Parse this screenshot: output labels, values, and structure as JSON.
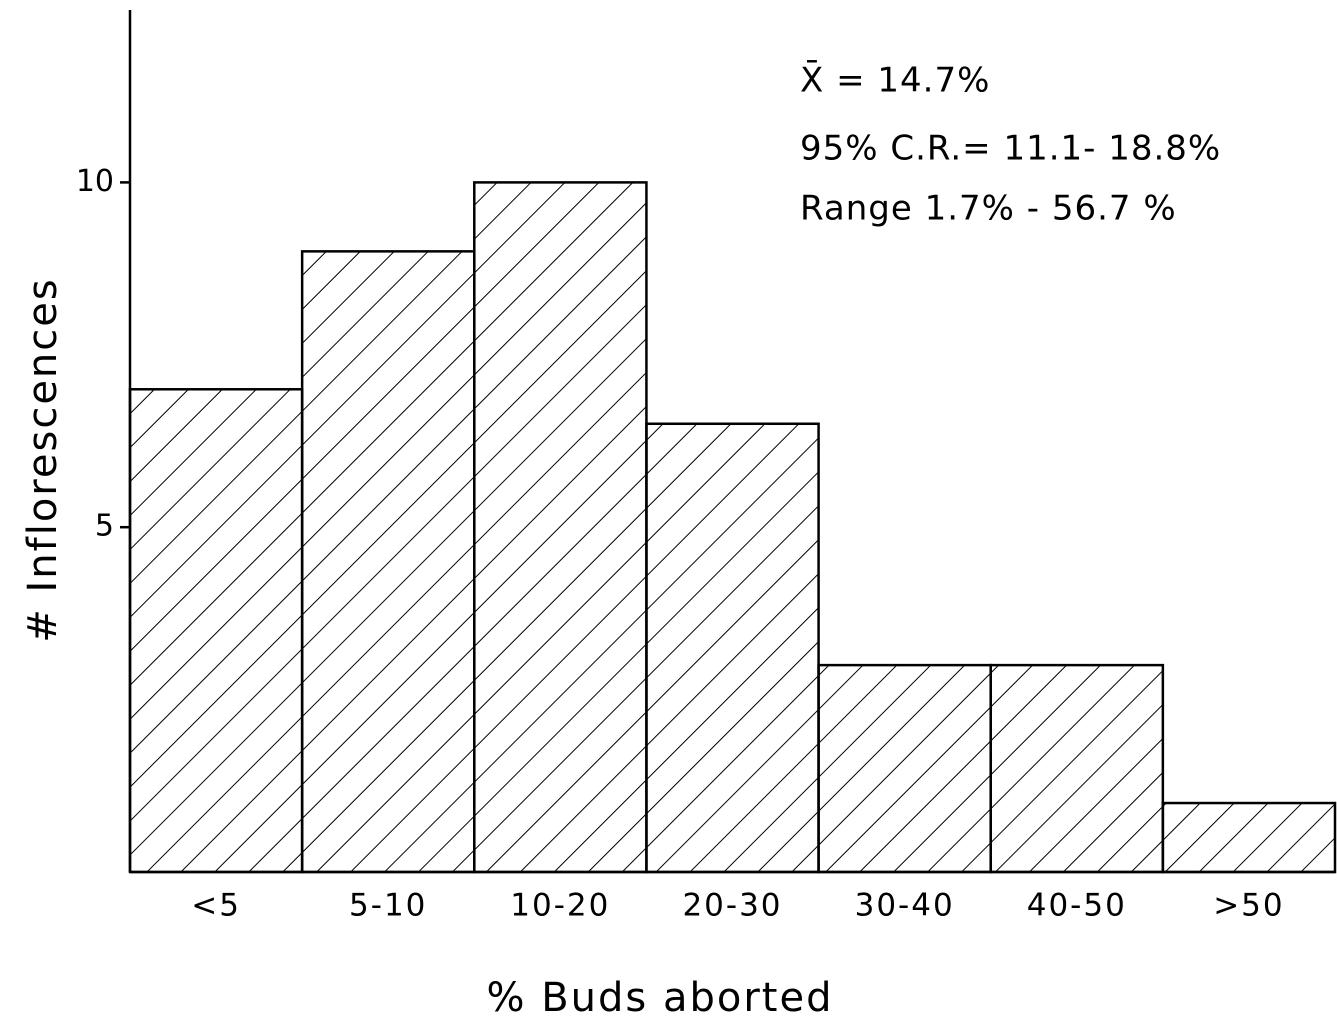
{
  "chart_data": {
    "type": "bar",
    "categories": [
      "<5",
      "5-10",
      "10-20",
      "20-30",
      "30-40",
      "40-50",
      ">50"
    ],
    "values": [
      7,
      9,
      10,
      6.5,
      3,
      3,
      1
    ],
    "color": "#000000",
    "pattern": "hatch",
    "ylim": [
      0,
      12.5
    ],
    "yticks": [
      5,
      10
    ],
    "x_label": "% Buds aborted",
    "y_label": "# Inflorescences",
    "annotations": [
      "X̄ = 14.7%",
      "95% C.R.= 11.1- 18.8%",
      "Range 1.7% - 56.7 %"
    ]
  }
}
